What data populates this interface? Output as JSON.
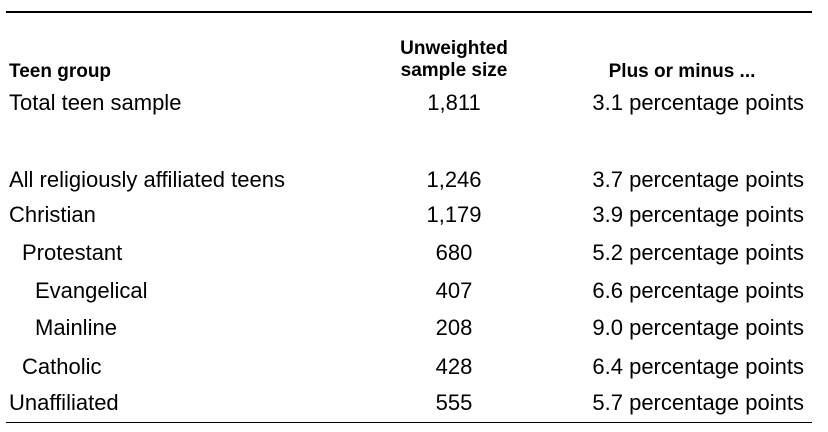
{
  "table": {
    "headers": {
      "group": "Teen group",
      "sample_line1": "Unweighted",
      "sample_line2": "sample size",
      "moe": "Plus or minus ..."
    },
    "rows": [
      {
        "group": "Total teen sample",
        "n": "1,811",
        "moe": "3.1 percentage points",
        "indent": 0
      },
      {
        "group": "All religiously affiliated teens",
        "n": "1,246",
        "moe": "3.7 percentage points",
        "indent": 0
      },
      {
        "group": "Christian",
        "n": "1,179",
        "moe": "3.9 percentage points",
        "indent": 0
      },
      {
        "group": "Protestant",
        "n": "680",
        "moe": "5.2 percentage points",
        "indent": 1
      },
      {
        "group": "Evangelical",
        "n": "407",
        "moe": "6.6 percentage points",
        "indent": 2
      },
      {
        "group": "Mainline",
        "n": "208",
        "moe": "9.0 percentage points",
        "indent": 2
      },
      {
        "group": "Catholic",
        "n": "428",
        "moe": "6.4 percentage points",
        "indent": 1
      },
      {
        "group": "Unaffiliated",
        "n": "555",
        "moe": "5.7 percentage points",
        "indent": 0
      }
    ]
  }
}
